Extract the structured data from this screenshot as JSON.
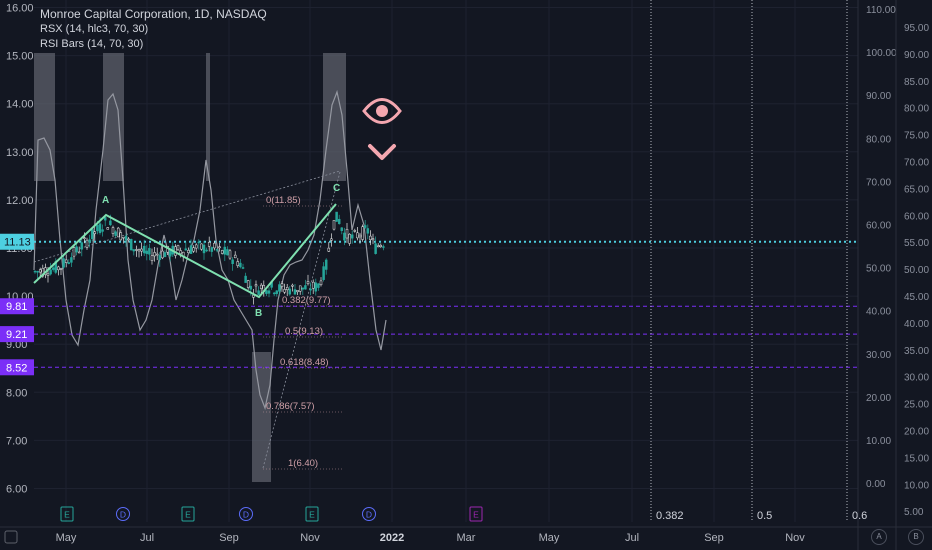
{
  "legend": {
    "title": "Monroe Capital Corporation, 1D, NASDAQ",
    "indicator1": "RSX (14, hlc3, 70, 30)",
    "indicator2": "RSI Bars (14, 70, 30)"
  },
  "colors": {
    "background": "#131722",
    "bull": "#26a69a",
    "wave": "#7fe0b0",
    "price_line": "#4dd0e1",
    "level": "#7b2ff7",
    "rsx": "#9598a1",
    "fib": "#d0a0a8",
    "eye": "#f4a7b0"
  },
  "price_axis": {
    "ticks": [
      "16.00",
      "15.00",
      "14.00",
      "13.00",
      "12.00",
      "11.00",
      "10.00",
      "9.00",
      "8.00",
      "7.00",
      "6.00"
    ],
    "current": "11.13",
    "levels": [
      "9.81",
      "9.21",
      "8.52"
    ]
  },
  "rsx_axis_a": {
    "ticks": [
      "110.00",
      "100.00",
      "90.00",
      "80.00",
      "70.00",
      "60.00",
      "50.00",
      "40.00",
      "30.00",
      "20.00",
      "10.00",
      "0.00"
    ]
  },
  "rsx_axis_b": {
    "ticks": [
      "95.00",
      "90.00",
      "85.00",
      "80.00",
      "75.00",
      "70.00",
      "65.00",
      "60.00",
      "55.00",
      "50.00",
      "45.00",
      "40.00",
      "35.00",
      "30.00",
      "25.00",
      "20.00",
      "15.00",
      "10.00",
      "5.00"
    ]
  },
  "time_axis": {
    "labels": [
      "May",
      "Jul",
      "Sep",
      "Nov",
      "2022",
      "Mar",
      "May",
      "Jul",
      "Sep",
      "Nov"
    ]
  },
  "earnings_markers": [
    "E",
    "D",
    "E",
    "D",
    "E",
    "D",
    "E"
  ],
  "wave_labels": [
    "A",
    "B",
    "C"
  ],
  "fib_labels": [
    "0(11.85)",
    "0.382(9.77)",
    "0.5(9.13)",
    "0.618(8.48)",
    "0.786(7.57)",
    "1(6.40)"
  ],
  "time_fib_labels": [
    "0.382",
    "0.5",
    "0.6"
  ],
  "corner_buttons": [
    "A",
    "B"
  ],
  "chart_data": {
    "type": "candlestick",
    "title": "Monroe Capital Corporation, 1D, NASDAQ",
    "y_range": [
      6.0,
      16.0
    ],
    "x_range": [
      "2021-04-01",
      "2022-12-31"
    ],
    "current_price": 11.13,
    "horizontal_levels": [
      9.81,
      9.21,
      8.52
    ],
    "series": [
      {
        "name": "Monroe Capital Corporation, 1D, NASDAQ",
        "x": [
          "2021-04",
          "2021-05",
          "2021-06",
          "2021-07",
          "2021-08",
          "2021-09",
          "2021-10",
          "2021-11",
          "2021-12"
        ],
        "values": [
          10.5,
          11.0,
          11.6,
          10.9,
          10.7,
          10.1,
          10.2,
          11.3,
          11.1
        ]
      }
    ],
    "abc_pattern": [
      {
        "label": "A",
        "x": "2021-06-06",
        "y": 11.6
      },
      {
        "label": "B",
        "x": "2021-09-10",
        "y": 9.85
      },
      {
        "label": "C",
        "x": "2021-11-18",
        "y": 11.85
      }
    ],
    "fib_retracement": [
      {
        "ratio": 0,
        "price": 11.85
      },
      {
        "ratio": 0.382,
        "price": 9.77
      },
      {
        "ratio": 0.5,
        "price": 9.13
      },
      {
        "ratio": 0.618,
        "price": 8.48
      },
      {
        "ratio": 0.786,
        "price": 7.57
      },
      {
        "ratio": 1,
        "price": 6.4
      }
    ],
    "rsx_overbought": 70,
    "rsx_oversold": 30
  }
}
